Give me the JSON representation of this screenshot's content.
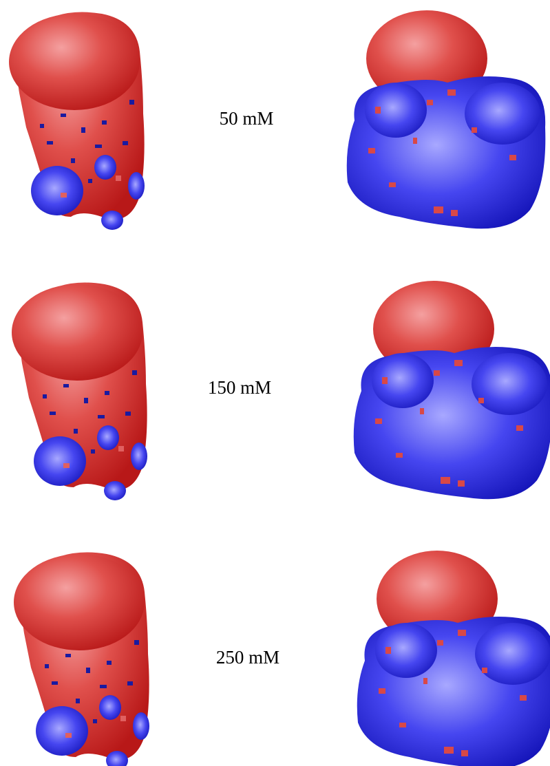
{
  "rows": [
    {
      "label": "50 mM"
    },
    {
      "label": "150 mM"
    },
    {
      "label": "250 mM"
    }
  ]
}
